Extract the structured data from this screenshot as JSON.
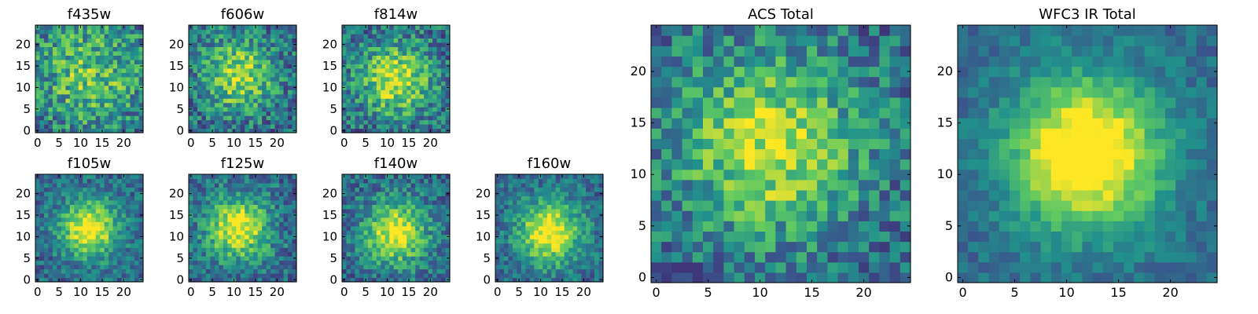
{
  "chart_data": [
    {
      "type": "heatmap",
      "title": "f435w",
      "xticks": [
        "0",
        "5",
        "10",
        "15",
        "20"
      ],
      "yticks": [
        "0",
        "5",
        "10",
        "15",
        "20"
      ],
      "grid_size": 25,
      "xlim": [
        0,
        24
      ],
      "ylim": [
        0,
        24
      ],
      "seed": 11,
      "center": [
        12,
        13
      ],
      "sigma": 9,
      "peak": 0.25,
      "noise": 0.55
    },
    {
      "type": "heatmap",
      "title": "f606w",
      "xticks": [
        "0",
        "5",
        "10",
        "15",
        "20"
      ],
      "yticks": [
        "0",
        "5",
        "10",
        "15",
        "20"
      ],
      "grid_size": 25,
      "xlim": [
        0,
        24
      ],
      "ylim": [
        0,
        24
      ],
      "seed": 23,
      "center": [
        11,
        13
      ],
      "sigma": 6,
      "peak": 0.4,
      "noise": 0.5
    },
    {
      "type": "heatmap",
      "title": "f814w",
      "xticks": [
        "0",
        "5",
        "10",
        "15",
        "20"
      ],
      "yticks": [
        "0",
        "5",
        "10",
        "15",
        "20"
      ],
      "grid_size": 25,
      "xlim": [
        0,
        24
      ],
      "ylim": [
        0,
        24
      ],
      "seed": 37,
      "center": [
        12,
        12
      ],
      "sigma": 6,
      "peak": 0.45,
      "noise": 0.5
    },
    {
      "type": "heatmap",
      "title": "f105w",
      "xticks": [
        "0",
        "5",
        "10",
        "15",
        "20"
      ],
      "yticks": [
        "0",
        "5",
        "10",
        "15",
        "20"
      ],
      "grid_size": 25,
      "xlim": [
        0,
        24
      ],
      "ylim": [
        0,
        24
      ],
      "seed": 41,
      "center": [
        12,
        12
      ],
      "sigma": 4.5,
      "peak": 0.6,
      "noise": 0.35
    },
    {
      "type": "heatmap",
      "title": "f125w",
      "xticks": [
        "0",
        "5",
        "10",
        "15",
        "20"
      ],
      "yticks": [
        "0",
        "5",
        "10",
        "15",
        "20"
      ],
      "grid_size": 25,
      "xlim": [
        0,
        24
      ],
      "ylim": [
        0,
        24
      ],
      "seed": 53,
      "center": [
        11,
        12
      ],
      "sigma": 5,
      "peak": 0.55,
      "noise": 0.4
    },
    {
      "type": "heatmap",
      "title": "f140w",
      "xticks": [
        "0",
        "5",
        "10",
        "15",
        "20"
      ],
      "yticks": [
        "0",
        "5",
        "10",
        "15",
        "20"
      ],
      "grid_size": 25,
      "xlim": [
        0,
        24
      ],
      "ylim": [
        0,
        24
      ],
      "seed": 67,
      "center": [
        12,
        11
      ],
      "sigma": 5,
      "peak": 0.55,
      "noise": 0.4
    },
    {
      "type": "heatmap",
      "title": "f160w",
      "xticks": [
        "0",
        "5",
        "10",
        "15",
        "20"
      ],
      "yticks": [
        "0",
        "5",
        "10",
        "15",
        "20"
      ],
      "grid_size": 25,
      "xlim": [
        0,
        24
      ],
      "ylim": [
        0,
        24
      ],
      "seed": 79,
      "center": [
        12,
        11
      ],
      "sigma": 5,
      "peak": 0.6,
      "noise": 0.35
    },
    {
      "type": "heatmap",
      "title": "ACS Total",
      "xticks": [
        "0",
        "5",
        "10",
        "15",
        "20"
      ],
      "yticks": [
        "0",
        "5",
        "10",
        "15",
        "20"
      ],
      "grid_size": 25,
      "xlim": [
        0,
        24
      ],
      "ylim": [
        0,
        24
      ],
      "seed": 97,
      "center": [
        11,
        13
      ],
      "sigma": 6,
      "peak": 0.45,
      "noise": 0.45
    },
    {
      "type": "heatmap",
      "title": "WFC3 IR Total",
      "xticks": [
        "0",
        "5",
        "10",
        "15",
        "20"
      ],
      "yticks": [
        "0",
        "5",
        "10",
        "15",
        "20"
      ],
      "grid_size": 25,
      "xlim": [
        0,
        24
      ],
      "ylim": [
        0,
        24
      ],
      "seed": 101,
      "center": [
        12,
        12
      ],
      "sigma": 5,
      "peak": 0.75,
      "noise": 0.22
    }
  ],
  "colormap": {
    "name": "viridis",
    "stops": [
      "#440154",
      "#3b528b",
      "#21918c",
      "#5ec962",
      "#fde725"
    ]
  }
}
